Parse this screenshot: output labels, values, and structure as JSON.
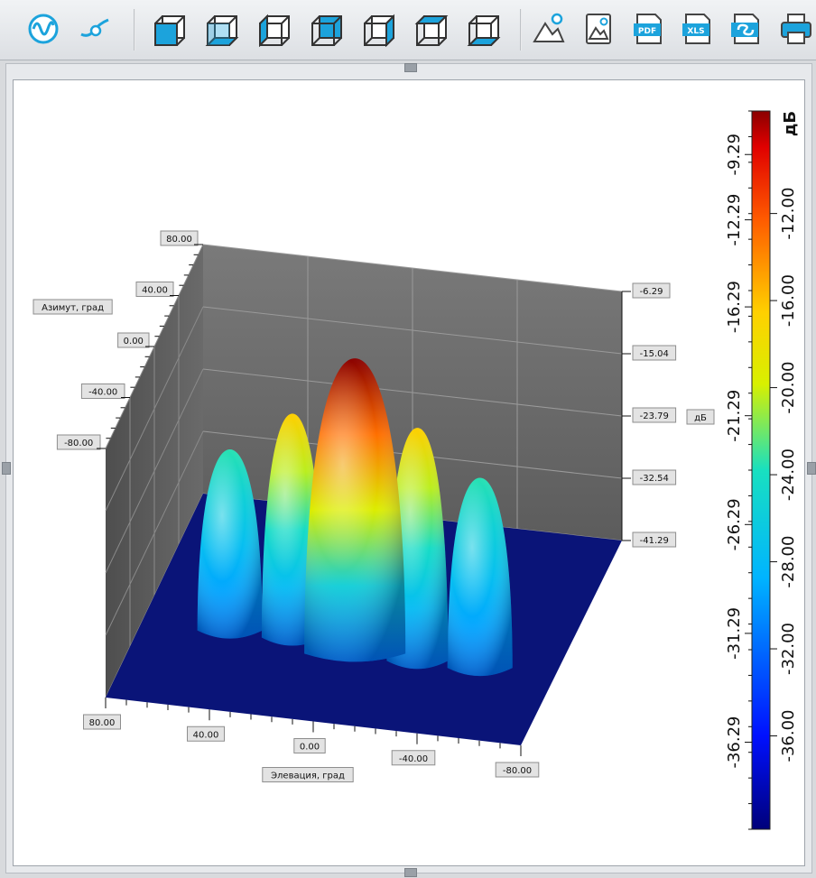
{
  "toolbar": {
    "buttons": [
      {
        "name": "waveform-icon",
        "label": ""
      },
      {
        "name": "curve-icon",
        "label": ""
      },
      {
        "name": "cube-front-view-icon",
        "label": ""
      },
      {
        "name": "cube-bottom-view-icon",
        "label": ""
      },
      {
        "name": "cube-left-view-icon",
        "label": ""
      },
      {
        "name": "cube-back-view-icon",
        "label": ""
      },
      {
        "name": "cube-right-view-icon",
        "label": ""
      },
      {
        "name": "cube-top-view-icon",
        "label": ""
      },
      {
        "name": "cube-floor-view-icon",
        "label": ""
      },
      {
        "name": "chart-point-icon",
        "label": ""
      },
      {
        "name": "image-export-icon",
        "label": ""
      },
      {
        "name": "pdf-export-icon",
        "label": "PDF"
      },
      {
        "name": "xls-export-icon",
        "label": "XLS"
      },
      {
        "name": "copy-icon",
        "label": ""
      },
      {
        "name": "print-icon",
        "label": ""
      }
    ]
  },
  "colors": {
    "accent": "#1ca3dc",
    "floor": "#0a1478",
    "wall": "#6e6e6e"
  },
  "chart_data": {
    "type": "surface3d",
    "title": "",
    "x_axis": {
      "label": "Элевация, град",
      "ticks": [
        "80.00",
        "40.00",
        "0.00",
        "-40.00",
        "-80.00"
      ],
      "range": [
        -80,
        80
      ]
    },
    "y_axis": {
      "label": "Азимут, град",
      "ticks": [
        "80.00",
        "40.00",
        "0.00",
        "-40.00",
        "-80.00"
      ],
      "range": [
        -80,
        80
      ]
    },
    "z_axis": {
      "label": "дБ",
      "ticks": [
        "-6.29",
        "-15.04",
        "-23.79",
        "-32.54",
        "-41.29"
      ],
      "range": [
        -41.29,
        -6.29
      ]
    },
    "lobes": [
      {
        "elevation": -48,
        "peak_db": -23.5
      },
      {
        "elevation": -24,
        "peak_db": -16.5
      },
      {
        "elevation": 0,
        "peak_db": -6.3
      },
      {
        "elevation": 24,
        "peak_db": -16.5
      },
      {
        "elevation": 48,
        "peak_db": -23.5
      }
    ],
    "colorbar": {
      "label": "дБ",
      "min": -40.29,
      "max": -7.29,
      "ticks_left": [
        "-9.29",
        "-12.29",
        "-16.29",
        "-21.29",
        "-26.29",
        "-31.29",
        "-36.29"
      ],
      "ticks_right": [
        "-12.00",
        "-16.00",
        "-20.00",
        "-24.00",
        "-28.00",
        "-32.00",
        "-36.00"
      ]
    },
    "grid": true,
    "legend": "colorbar-right"
  }
}
